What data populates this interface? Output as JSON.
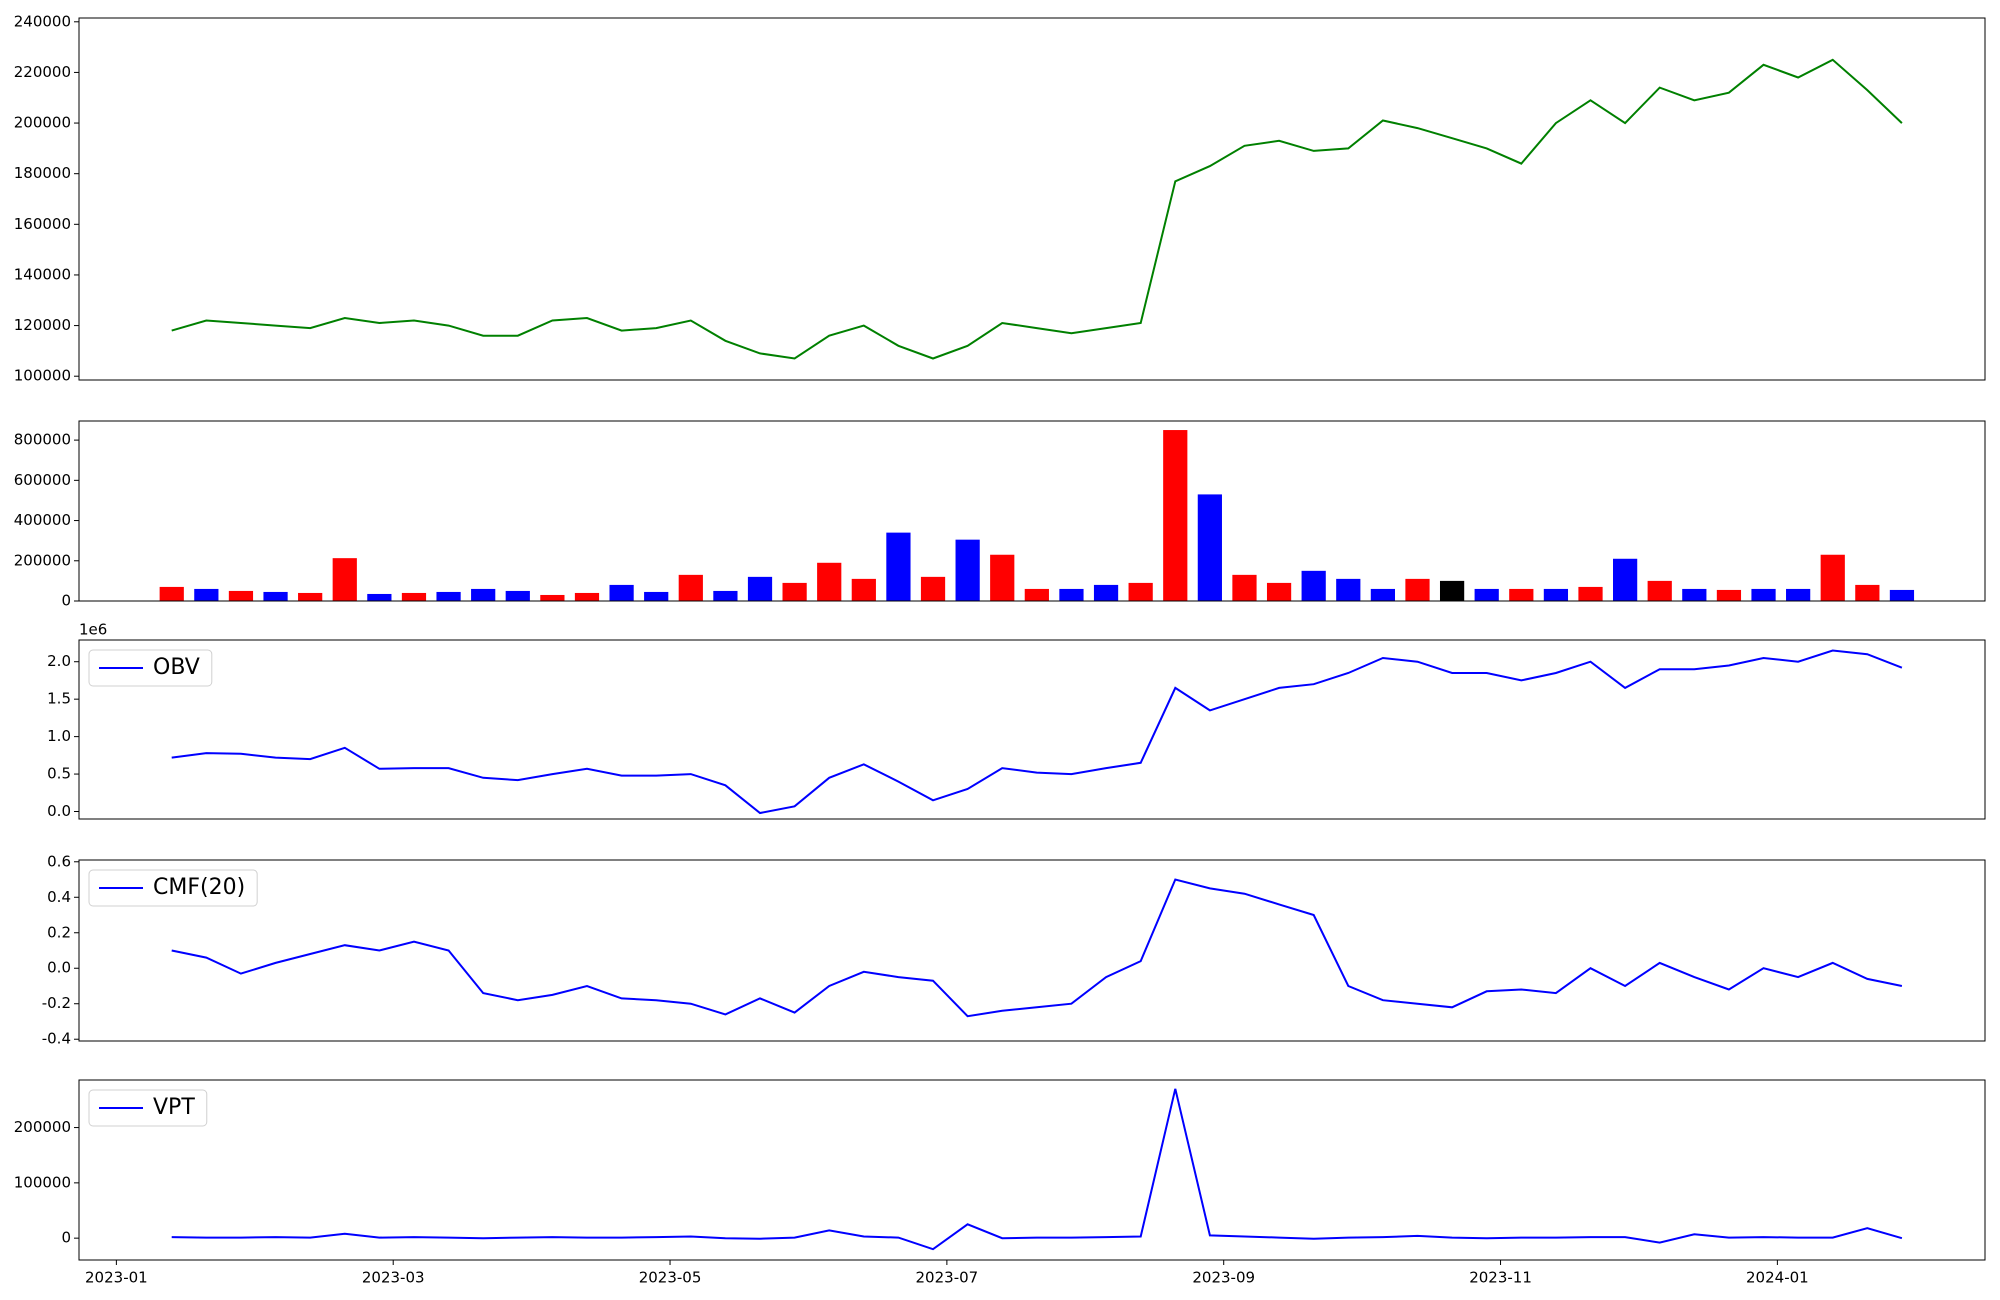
{
  "chart_data": [
    {
      "type": "line",
      "color": "#008000",
      "x": [
        0.4,
        0.65,
        0.9,
        1.15,
        1.4,
        1.65,
        1.9,
        2.15,
        2.4,
        2.65,
        2.9,
        3.15,
        3.4,
        3.65,
        3.9,
        4.15,
        4.4,
        4.65,
        4.9,
        5.15,
        5.4,
        5.65,
        5.9,
        6.15,
        6.4,
        6.65,
        6.9,
        7.15,
        7.4,
        7.65,
        7.9,
        8.15,
        8.4,
        8.65,
        8.9,
        9.15,
        9.4,
        9.65,
        9.9,
        10.15,
        10.4,
        10.65,
        10.9,
        11.15,
        11.4,
        11.65,
        11.9,
        12.15,
        12.4,
        12.65,
        12.9
      ],
      "values": [
        118000,
        122000,
        121000,
        120000,
        119000,
        123000,
        121000,
        122000,
        120000,
        116000,
        116000,
        122000,
        123000,
        118000,
        119000,
        122000,
        114000,
        109000,
        107000,
        116000,
        120000,
        112000,
        107000,
        112000,
        121000,
        119000,
        117000,
        119000,
        121000,
        177000,
        183000,
        191000,
        193000,
        189000,
        190000,
        201000,
        198000,
        194000,
        190000,
        184000,
        200000,
        209000,
        200000,
        214000,
        209000,
        212000,
        223000,
        218000,
        225000,
        213000,
        200000
      ],
      "xlim": [
        -0.27,
        13.5
      ],
      "ylim": [
        98500,
        241500
      ],
      "yticks": [
        100000,
        120000,
        140000,
        160000,
        180000,
        200000,
        220000,
        240000
      ]
    },
    {
      "type": "bar",
      "x": [
        0.4,
        0.65,
        0.9,
        1.15,
        1.4,
        1.65,
        1.9,
        2.15,
        2.4,
        2.65,
        2.9,
        3.15,
        3.4,
        3.65,
        3.9,
        4.15,
        4.4,
        4.65,
        4.9,
        5.15,
        5.4,
        5.65,
        5.9,
        6.15,
        6.4,
        6.65,
        6.9,
        7.15,
        7.4,
        7.65,
        7.9,
        8.15,
        8.4,
        8.65,
        8.9,
        9.15,
        9.4,
        9.65,
        9.9,
        10.15,
        10.4,
        10.65,
        10.9,
        11.15,
        11.4,
        11.65,
        11.9,
        12.15,
        12.4,
        12.65,
        12.9
      ],
      "values": [
        70000,
        60000,
        50000,
        45000,
        40000,
        213000,
        35000,
        40000,
        45000,
        60000,
        50000,
        30000,
        40000,
        80000,
        45000,
        130000,
        50000,
        120000,
        90000,
        190000,
        110000,
        340000,
        120000,
        305000,
        230000,
        60000,
        60000,
        80000,
        90000,
        850000,
        530000,
        130000,
        90000,
        150000,
        110000,
        60000,
        110000,
        100000,
        60000,
        60000,
        60000,
        70000,
        210000,
        100000,
        60000,
        55000,
        60000,
        60000,
        230000,
        80000,
        55000
      ],
      "colors": [
        "red",
        "blue",
        "red",
        "blue",
        "red",
        "red",
        "blue",
        "red",
        "blue",
        "blue",
        "blue",
        "red",
        "red",
        "blue",
        "blue",
        "red",
        "blue",
        "blue",
        "red",
        "red",
        "red",
        "blue",
        "red",
        "blue",
        "red",
        "red",
        "blue",
        "blue",
        "red",
        "red",
        "blue",
        "red",
        "red",
        "blue",
        "blue",
        "blue",
        "red",
        "black",
        "blue",
        "red",
        "blue",
        "red",
        "blue",
        "red",
        "blue",
        "red",
        "blue",
        "blue",
        "red",
        "red",
        "blue"
      ],
      "xlim": [
        -0.27,
        13.5
      ],
      "ylim": [
        0,
        895000
      ],
      "yticks": [
        0,
        200000,
        400000,
        600000,
        800000
      ]
    },
    {
      "type": "line",
      "legend": "upper left",
      "offset_text": "1e6",
      "x": [
        0.4,
        0.65,
        0.9,
        1.15,
        1.4,
        1.65,
        1.9,
        2.15,
        2.4,
        2.65,
        2.9,
        3.15,
        3.4,
        3.65,
        3.9,
        4.15,
        4.4,
        4.65,
        4.9,
        5.15,
        5.4,
        5.65,
        5.9,
        6.15,
        6.4,
        6.65,
        6.9,
        7.15,
        7.4,
        7.65,
        7.9,
        8.15,
        8.4,
        8.65,
        8.9,
        9.15,
        9.4,
        9.65,
        9.9,
        10.15,
        10.4,
        10.65,
        10.9,
        11.15,
        11.4,
        11.65,
        11.9,
        12.15,
        12.4,
        12.65,
        12.9
      ],
      "series": [
        {
          "name": "OBV",
          "color": "#0000ff",
          "values": [
            0.72,
            0.78,
            0.77,
            0.72,
            0.7,
            0.85,
            0.57,
            0.58,
            0.58,
            0.45,
            0.42,
            0.5,
            0.57,
            0.48,
            0.48,
            0.5,
            0.35,
            -0.02,
            0.07,
            0.45,
            0.63,
            0.4,
            0.15,
            0.3,
            0.58,
            0.52,
            0.5,
            0.58,
            0.65,
            1.65,
            1.35,
            1.5,
            1.65,
            1.7,
            1.85,
            2.05,
            2.0,
            1.85,
            1.85,
            1.75,
            1.85,
            2.0,
            1.65,
            1.9,
            1.9,
            1.95,
            2.05,
            2.0,
            2.15,
            2.1,
            1.92
          ]
        }
      ],
      "xlim": [
        -0.27,
        13.5
      ],
      "ylim": [
        -0.1,
        2.29
      ],
      "yticks": [
        {
          "value": 0,
          "label": "0.0"
        },
        0.5,
        {
          "value": 1,
          "label": "1.0"
        },
        1.5,
        {
          "value": 2,
          "label": "2.0"
        }
      ]
    },
    {
      "type": "line",
      "legend": "upper left",
      "x": [
        0.4,
        0.65,
        0.9,
        1.15,
        1.4,
        1.65,
        1.9,
        2.15,
        2.4,
        2.65,
        2.9,
        3.15,
        3.4,
        3.65,
        3.9,
        4.15,
        4.4,
        4.65,
        4.9,
        5.15,
        5.4,
        5.65,
        5.9,
        6.15,
        6.4,
        6.65,
        6.9,
        7.15,
        7.4,
        7.65,
        7.9,
        8.15,
        8.4,
        8.65,
        8.9,
        9.15,
        9.4,
        9.65,
        9.9,
        10.15,
        10.4,
        10.65,
        10.9,
        11.15,
        11.4,
        11.65,
        11.9,
        12.15,
        12.4,
        12.65,
        12.9
      ],
      "series": [
        {
          "name": "CMF(20)",
          "color": "#0000ff",
          "values": [
            0.1,
            0.06,
            -0.03,
            0.03,
            0.08,
            0.13,
            0.1,
            0.15,
            0.1,
            -0.14,
            -0.18,
            -0.15,
            -0.1,
            -0.17,
            -0.18,
            -0.2,
            -0.26,
            -0.17,
            -0.25,
            -0.1,
            -0.02,
            -0.05,
            -0.07,
            -0.27,
            -0.24,
            -0.22,
            -0.2,
            -0.05,
            0.04,
            0.5,
            0.45,
            0.42,
            0.36,
            0.3,
            -0.1,
            -0.18,
            -0.2,
            -0.22,
            -0.13,
            -0.12,
            -0.14,
            0.0,
            -0.1,
            0.03,
            -0.05,
            -0.12,
            0.0,
            -0.05,
            0.03,
            -0.06,
            -0.1
          ]
        }
      ],
      "xlim": [
        -0.27,
        13.5
      ],
      "ylim": [
        -0.41,
        0.61
      ],
      "yticks": [
        -0.4,
        -0.2,
        {
          "value": 0,
          "label": "0.0"
        },
        0.2,
        0.4,
        0.6
      ]
    },
    {
      "type": "line",
      "legend": "upper left",
      "x": [
        0.4,
        0.65,
        0.9,
        1.15,
        1.4,
        1.65,
        1.9,
        2.15,
        2.4,
        2.65,
        2.9,
        3.15,
        3.4,
        3.65,
        3.9,
        4.15,
        4.4,
        4.65,
        4.9,
        5.15,
        5.4,
        5.65,
        5.9,
        6.15,
        6.4,
        6.65,
        6.9,
        7.15,
        7.4,
        7.65,
        7.9,
        8.15,
        8.4,
        8.65,
        8.9,
        9.15,
        9.4,
        9.65,
        9.9,
        10.15,
        10.4,
        10.65,
        10.9,
        11.15,
        11.4,
        11.65,
        11.9,
        12.15,
        12.4,
        12.65,
        12.9
      ],
      "series": [
        {
          "name": "VPT",
          "color": "#0000ff",
          "values": [
            2000,
            1000,
            1000,
            2000,
            1000,
            8000,
            1000,
            2000,
            1000,
            0,
            1000,
            2000,
            1000,
            1000,
            2000,
            3000,
            0,
            -1000,
            1000,
            14000,
            3000,
            1000,
            -20000,
            25000,
            0,
            1000,
            1000,
            2000,
            3000,
            270000,
            5000,
            3000,
            1000,
            -1000,
            1000,
            2000,
            4000,
            1000,
            0,
            1000,
            1000,
            2000,
            2000,
            -8000,
            7000,
            1000,
            2000,
            1000,
            1000,
            18000,
            0
          ]
        }
      ],
      "xlim": [
        -0.27,
        13.5
      ],
      "ylim": [
        -39500,
        286000
      ],
      "yticks": [
        0,
        100000,
        200000
      ],
      "xticks": [
        {
          "value": 0,
          "label": "2023-01"
        },
        {
          "value": 2,
          "label": "2023-03"
        },
        {
          "value": 4,
          "label": "2023-05"
        },
        {
          "value": 6,
          "label": "2023-07"
        },
        {
          "value": 8,
          "label": "2023-09"
        },
        {
          "value": 10,
          "label": "2023-11"
        },
        {
          "value": 12,
          "label": "2024-01"
        }
      ]
    }
  ]
}
